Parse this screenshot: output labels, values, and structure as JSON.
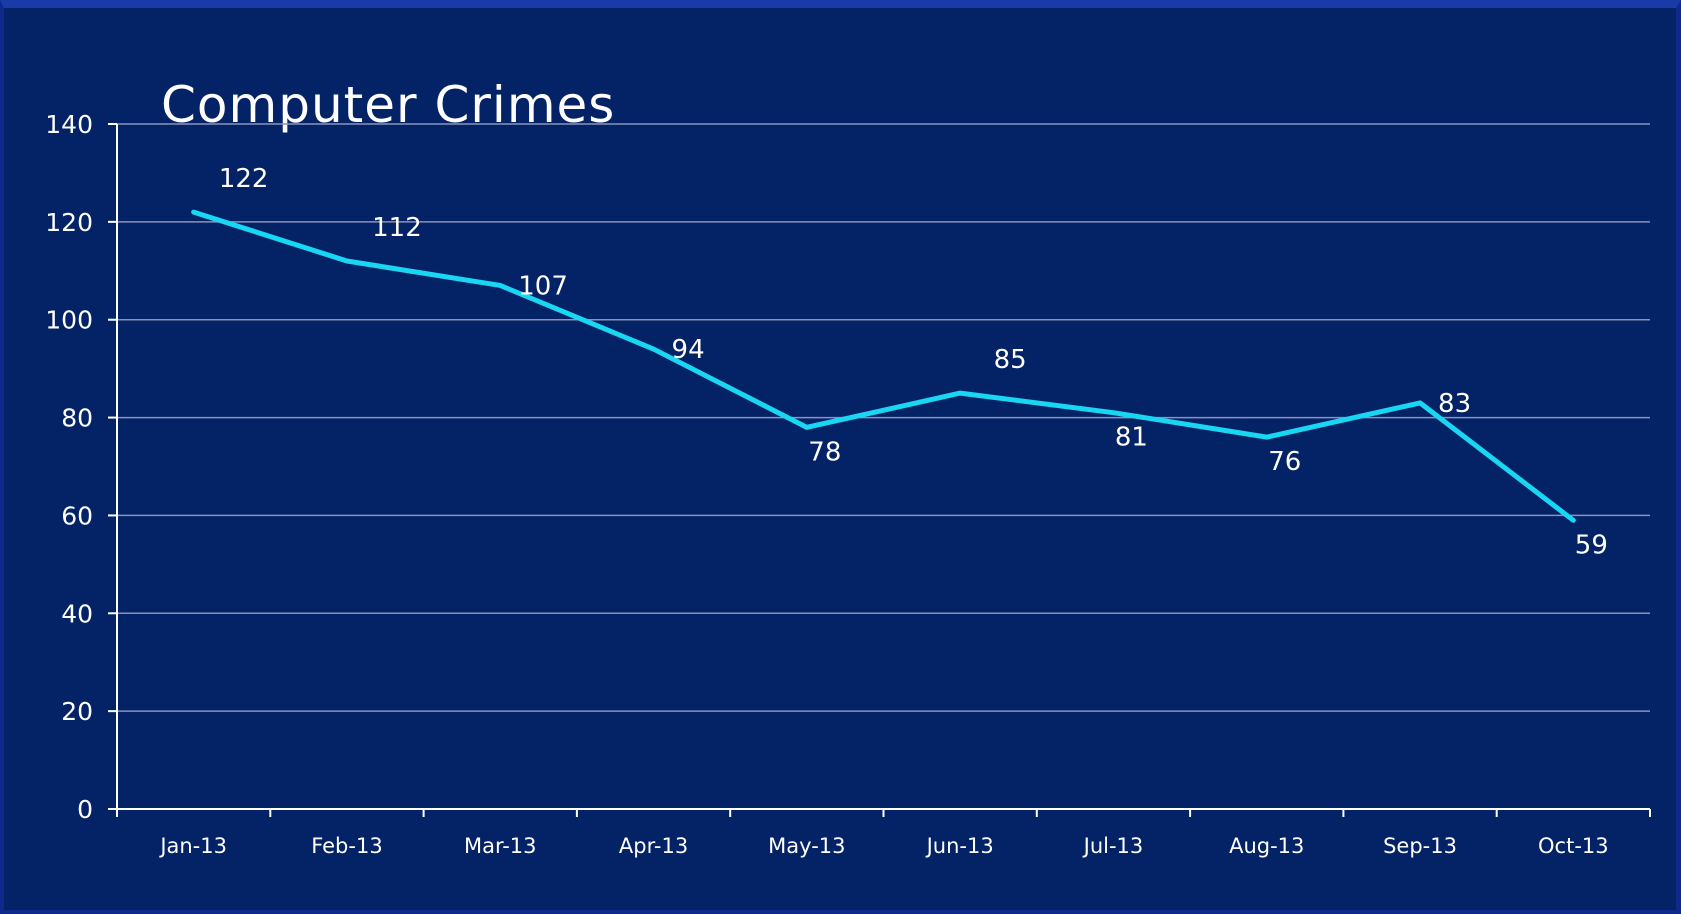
{
  "chart_data": {
    "type": "line",
    "title": "Computer Crimes",
    "xlabel": "",
    "ylabel": "",
    "categories": [
      "Jan-13",
      "Feb-13",
      "Mar-13",
      "Apr-13",
      "May-13",
      "Jun-13",
      "Jul-13",
      "Aug-13",
      "Sep-13",
      "Oct-13"
    ],
    "series": [
      {
        "values": [
          122,
          112,
          107,
          94,
          78,
          85,
          81,
          76,
          83,
          59
        ],
        "color": "#19d6f2"
      }
    ],
    "ylim": [
      0,
      140
    ],
    "yticks": [
      0,
      20,
      40,
      60,
      80,
      100,
      120,
      140
    ],
    "grid": true,
    "legend": "none",
    "data_label_positions": [
      "above",
      "above",
      "right",
      "right",
      "below",
      "above",
      "below",
      "below",
      "right",
      "below"
    ]
  },
  "colors": {
    "background": "#042266",
    "line": "#19d6f2",
    "gridline": "#8a93b8",
    "axis": "#ffffff",
    "text": "#ffffff"
  }
}
